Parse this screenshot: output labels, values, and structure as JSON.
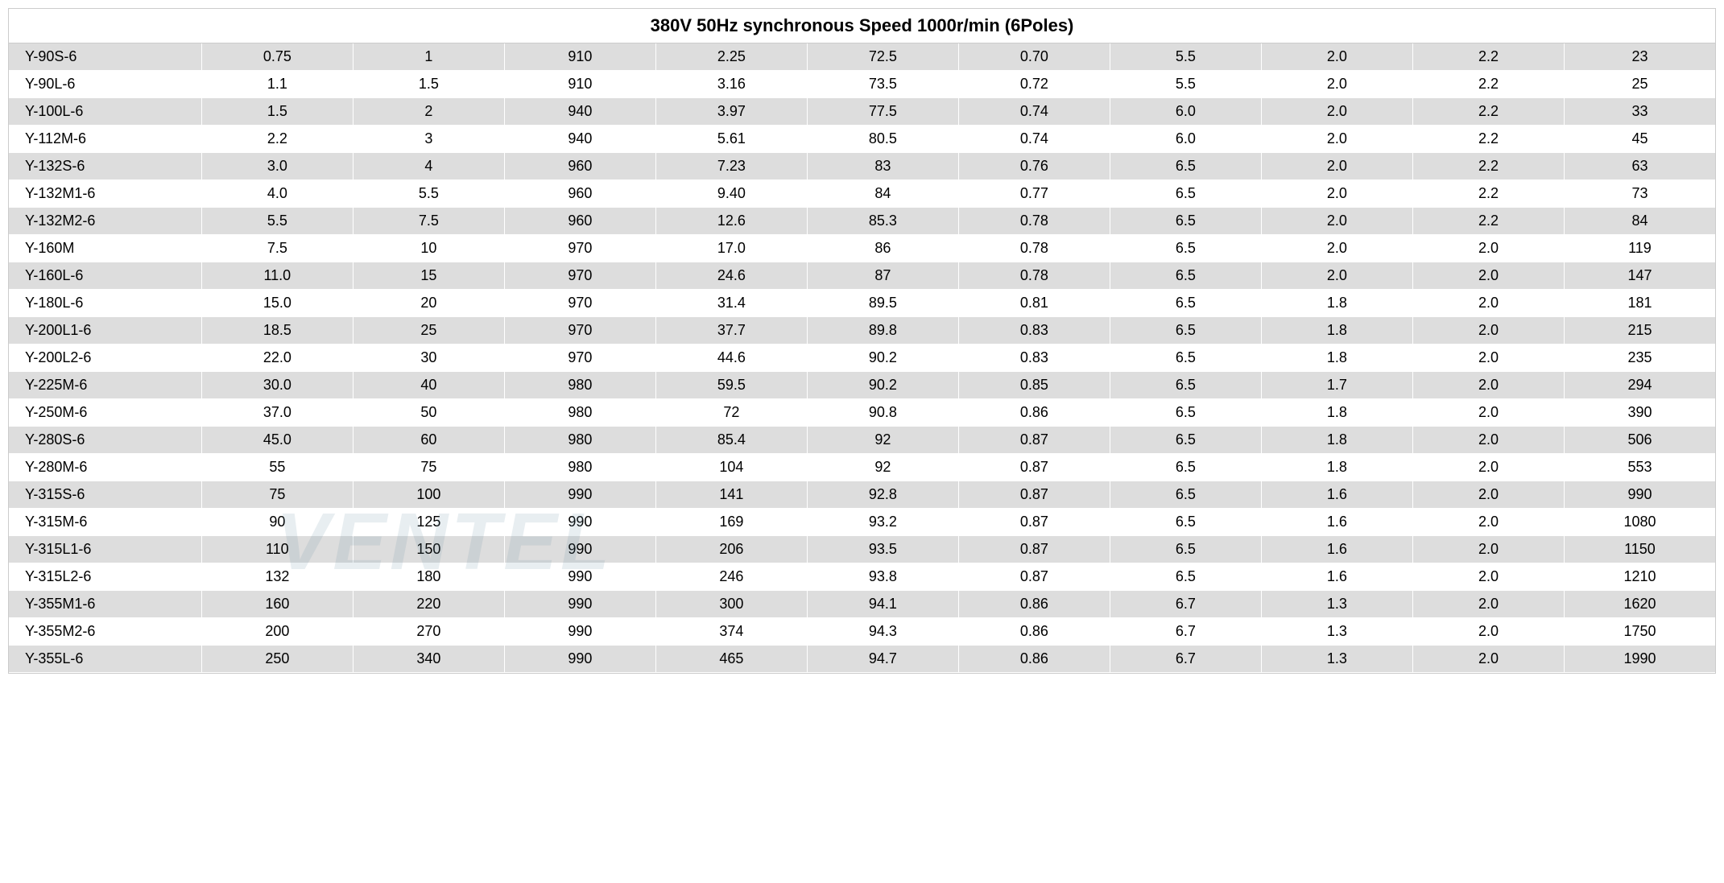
{
  "table": {
    "header_title": "380V 50Hz synchronous Speed 1000r/min (6Poles)",
    "columns_count": 11,
    "background_color_even": "#dddddd",
    "background_color_odd": "#ffffff",
    "border_color": "#cccccc",
    "font_family": "Arial",
    "header_fontsize": 22,
    "cell_fontsize": 18,
    "text_color": "#000000",
    "rows": [
      [
        "Y-90S-6",
        "0.75",
        "1",
        "910",
        "2.25",
        "72.5",
        "0.70",
        "5.5",
        "2.0",
        "2.2",
        "23"
      ],
      [
        "Y-90L-6",
        "1.1",
        "1.5",
        "910",
        "3.16",
        "73.5",
        "0.72",
        "5.5",
        "2.0",
        "2.2",
        "25"
      ],
      [
        "Y-100L-6",
        "1.5",
        "2",
        "940",
        "3.97",
        "77.5",
        "0.74",
        "6.0",
        "2.0",
        "2.2",
        "33"
      ],
      [
        "Y-112M-6",
        "2.2",
        "3",
        "940",
        "5.61",
        "80.5",
        "0.74",
        "6.0",
        "2.0",
        "2.2",
        "45"
      ],
      [
        "Y-132S-6",
        "3.0",
        "4",
        "960",
        "7.23",
        "83",
        "0.76",
        "6.5",
        "2.0",
        "2.2",
        "63"
      ],
      [
        "Y-132M1-6",
        "4.0",
        "5.5",
        "960",
        "9.40",
        "84",
        "0.77",
        "6.5",
        "2.0",
        "2.2",
        "73"
      ],
      [
        "Y-132M2-6",
        "5.5",
        "7.5",
        "960",
        "12.6",
        "85.3",
        "0.78",
        "6.5",
        "2.0",
        "2.2",
        "84"
      ],
      [
        "Y-160M",
        "7.5",
        "10",
        "970",
        "17.0",
        "86",
        "0.78",
        "6.5",
        "2.0",
        "2.0",
        "119"
      ],
      [
        "Y-160L-6",
        "11.0",
        "15",
        "970",
        "24.6",
        "87",
        "0.78",
        "6.5",
        "2.0",
        "2.0",
        "147"
      ],
      [
        "Y-180L-6",
        "15.0",
        "20",
        "970",
        "31.4",
        "89.5",
        "0.81",
        "6.5",
        "1.8",
        "2.0",
        "181"
      ],
      [
        "Y-200L1-6",
        "18.5",
        "25",
        "970",
        "37.7",
        "89.8",
        "0.83",
        "6.5",
        "1.8",
        "2.0",
        "215"
      ],
      [
        "Y-200L2-6",
        "22.0",
        "30",
        "970",
        "44.6",
        "90.2",
        "0.83",
        "6.5",
        "1.8",
        "2.0",
        "235"
      ],
      [
        "Y-225M-6",
        "30.0",
        "40",
        "980",
        "59.5",
        "90.2",
        "0.85",
        "6.5",
        "1.7",
        "2.0",
        "294"
      ],
      [
        "Y-250M-6",
        "37.0",
        "50",
        "980",
        "72",
        "90.8",
        "0.86",
        "6.5",
        "1.8",
        "2.0",
        "390"
      ],
      [
        "Y-280S-6",
        "45.0",
        "60",
        "980",
        "85.4",
        "92",
        "0.87",
        "6.5",
        "1.8",
        "2.0",
        "506"
      ],
      [
        "Y-280M-6",
        "55",
        "75",
        "980",
        "104",
        "92",
        "0.87",
        "6.5",
        "1.8",
        "2.0",
        "553"
      ],
      [
        "Y-315S-6",
        "75",
        "100",
        "990",
        "141",
        "92.8",
        "0.87",
        "6.5",
        "1.6",
        "2.0",
        "990"
      ],
      [
        "Y-315M-6",
        "90",
        "125",
        "990",
        "169",
        "93.2",
        "0.87",
        "6.5",
        "1.6",
        "2.0",
        "1080"
      ],
      [
        "Y-315L1-6",
        "110",
        "150",
        "990",
        "206",
        "93.5",
        "0.87",
        "6.5",
        "1.6",
        "2.0",
        "1150"
      ],
      [
        "Y-315L2-6",
        "132",
        "180",
        "990",
        "246",
        "93.8",
        "0.87",
        "6.5",
        "1.6",
        "2.0",
        "1210"
      ],
      [
        "Y-355M1-6",
        "160",
        "220",
        "990",
        "300",
        "94.1",
        "0.86",
        "6.7",
        "1.3",
        "2.0",
        "1620"
      ],
      [
        "Y-355M2-6",
        "200",
        "270",
        "990",
        "374",
        "94.3",
        "0.86",
        "6.7",
        "1.3",
        "2.0",
        "1750"
      ],
      [
        "Y-355L-6",
        "250",
        "340",
        "990",
        "465",
        "94.7",
        "0.86",
        "6.7",
        "1.3",
        "2.0",
        "1990"
      ]
    ]
  },
  "watermark": {
    "text": "VENTEL",
    "color": "rgba(100, 140, 160, 0.15)",
    "fontsize": 100
  }
}
